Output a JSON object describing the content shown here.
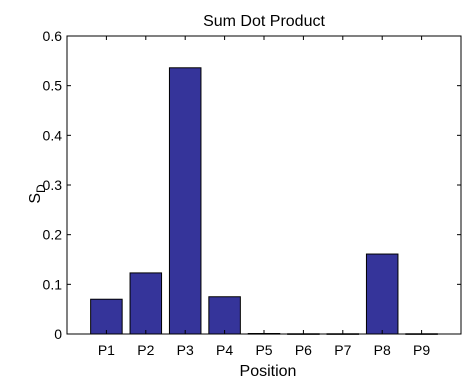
{
  "chart_data": {
    "type": "bar",
    "title": "Sum Dot Product",
    "xlabel": "Position",
    "ylabel": "S",
    "ylabel_subscript": "D",
    "categories": [
      "P1",
      "P2",
      "P3",
      "P4",
      "P5",
      "P6",
      "P7",
      "P8",
      "P9"
    ],
    "values": [
      0.07,
      0.123,
      0.536,
      0.075,
      0.001,
      0.0005,
      0.0005,
      0.161,
      0.0005
    ],
    "ylim": [
      0,
      0.6
    ],
    "yticks": [
      0,
      0.1,
      0.2,
      0.3,
      0.4,
      0.5,
      0.6
    ],
    "ytick_labels": [
      "0",
      "0.1",
      "0.2",
      "0.3",
      "0.4",
      "0.5",
      "0.6"
    ],
    "xlim": [
      0,
      10
    ],
    "grid": false,
    "colors": {
      "bar_fill": "#35349a",
      "bar_stroke": "#000000",
      "axis": "#000000",
      "background": "#ffffff"
    }
  }
}
